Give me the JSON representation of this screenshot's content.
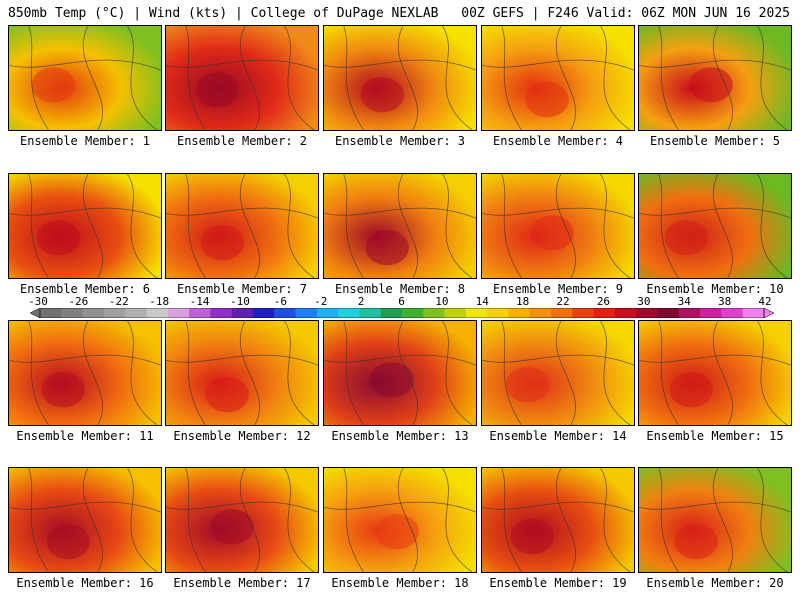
{
  "header": {
    "left": "850mb Temp (°C) | Wind (kts) | College of DuPage NEXLAB",
    "right": "00Z GEFS | F246 Valid: 06Z MON JUN 16 2025"
  },
  "members": [
    {
      "label": "Ensemble Member: 1",
      "base": "#f5c000",
      "hot": "#e23a10",
      "cool": "#7ec020"
    },
    {
      "label": "Ensemble Member: 2",
      "base": "#e02a18",
      "hot": "#9a0a24",
      "cool": "#f08a18"
    },
    {
      "label": "Ensemble Member: 3",
      "base": "#f08a10",
      "hot": "#b40c20",
      "cool": "#f5e000"
    },
    {
      "label": "Ensemble Member: 4",
      "base": "#f5a010",
      "hot": "#e23010",
      "cool": "#f5e000"
    },
    {
      "label": "Ensemble Member: 5",
      "base": "#f5a010",
      "hot": "#c80e1c",
      "cool": "#6eb822"
    },
    {
      "label": "Ensemble Member: 6",
      "base": "#e85010",
      "hot": "#c00e1c",
      "cool": "#f5e000"
    },
    {
      "label": "Ensemble Member: 7",
      "base": "#f07010",
      "hot": "#d21a18",
      "cool": "#f5d000"
    },
    {
      "label": "Ensemble Member: 8",
      "base": "#f08010",
      "hot": "#a00a28",
      "cool": "#f5d000"
    },
    {
      "label": "Ensemble Member: 9",
      "base": "#f08010",
      "hot": "#e02818",
      "cool": "#f5d800"
    },
    {
      "label": "Ensemble Member: 10",
      "base": "#f07010",
      "hot": "#d02018",
      "cool": "#6eb822"
    },
    {
      "label": "Ensemble Member: 11",
      "base": "#f06a10",
      "hot": "#b80c20",
      "cool": "#f5c000"
    },
    {
      "label": "Ensemble Member: 12",
      "base": "#f08010",
      "hot": "#d81c18",
      "cool": "#f5c800"
    },
    {
      "label": "Ensemble Member: 13",
      "base": "#e04018",
      "hot": "#8a0a30",
      "cool": "#f5b000"
    },
    {
      "label": "Ensemble Member: 14",
      "base": "#f08a10",
      "hot": "#e03018",
      "cool": "#f5d800"
    },
    {
      "label": "Ensemble Member: 15",
      "base": "#f07010",
      "hot": "#d01c18",
      "cool": "#f5d000"
    },
    {
      "label": "Ensemble Member: 16",
      "base": "#e84a14",
      "hot": "#a80c24",
      "cool": "#f5c000"
    },
    {
      "label": "Ensemble Member: 17",
      "base": "#e84a14",
      "hot": "#a00a28",
      "cool": "#f5c800"
    },
    {
      "label": "Ensemble Member: 18",
      "base": "#f5a010",
      "hot": "#e83a14",
      "cool": "#f5e000"
    },
    {
      "label": "Ensemble Member: 19",
      "base": "#e85010",
      "hot": "#b00c20",
      "cool": "#f5c800"
    },
    {
      "label": "Ensemble Member: 20",
      "base": "#f08010",
      "hot": "#d82018",
      "cool": "#7ec020"
    }
  ],
  "colorbar": {
    "ticks": [
      "-30",
      "-26",
      "-22",
      "-18",
      "-14",
      "-10",
      "-6",
      "-2",
      "2",
      "6",
      "10",
      "14",
      "18",
      "22",
      "26",
      "30",
      "34",
      "38",
      "42"
    ],
    "colors": [
      "#707070",
      "#808080",
      "#909090",
      "#a0a0a0",
      "#b0b0b0",
      "#c8c8c8",
      "#d8a0e0",
      "#c060d8",
      "#9030c8",
      "#6020b0",
      "#2020c0",
      "#2050e0",
      "#2080f0",
      "#20b0f0",
      "#20d0e0",
      "#20c0a0",
      "#20a050",
      "#40b030",
      "#80c020",
      "#c0d010",
      "#f0e800",
      "#f5d000",
      "#f5b000",
      "#f59010",
      "#f07010",
      "#e84010",
      "#e02010",
      "#c80e1c",
      "#a00a28",
      "#800a30",
      "#b01060",
      "#d020a0",
      "#e040d0",
      "#f080f0"
    ]
  }
}
